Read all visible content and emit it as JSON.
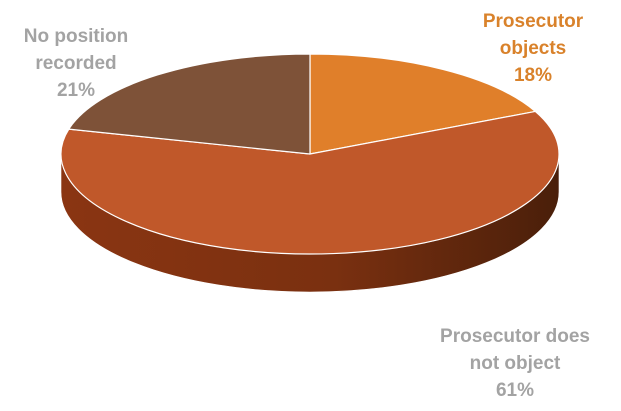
{
  "chart_data": {
    "type": "pie",
    "style": "3d",
    "slices": [
      {
        "label": [
          "Prosecutor",
          "objects"
        ],
        "value": 18,
        "value_label": "18%",
        "color": "#e07f2a",
        "label_color": "#d9822b"
      },
      {
        "label": [
          "Prosecutor does",
          "not object"
        ],
        "value": 61,
        "value_label": "61%",
        "color": "#c0582a",
        "label_color": "#a3a3a3"
      },
      {
        "label": [
          "No position",
          "recorded"
        ],
        "value": 21,
        "value_label": "21%",
        "color": "#7e5238",
        "label_color": "#a3a3a3"
      }
    ],
    "legend": "none",
    "title": ""
  }
}
